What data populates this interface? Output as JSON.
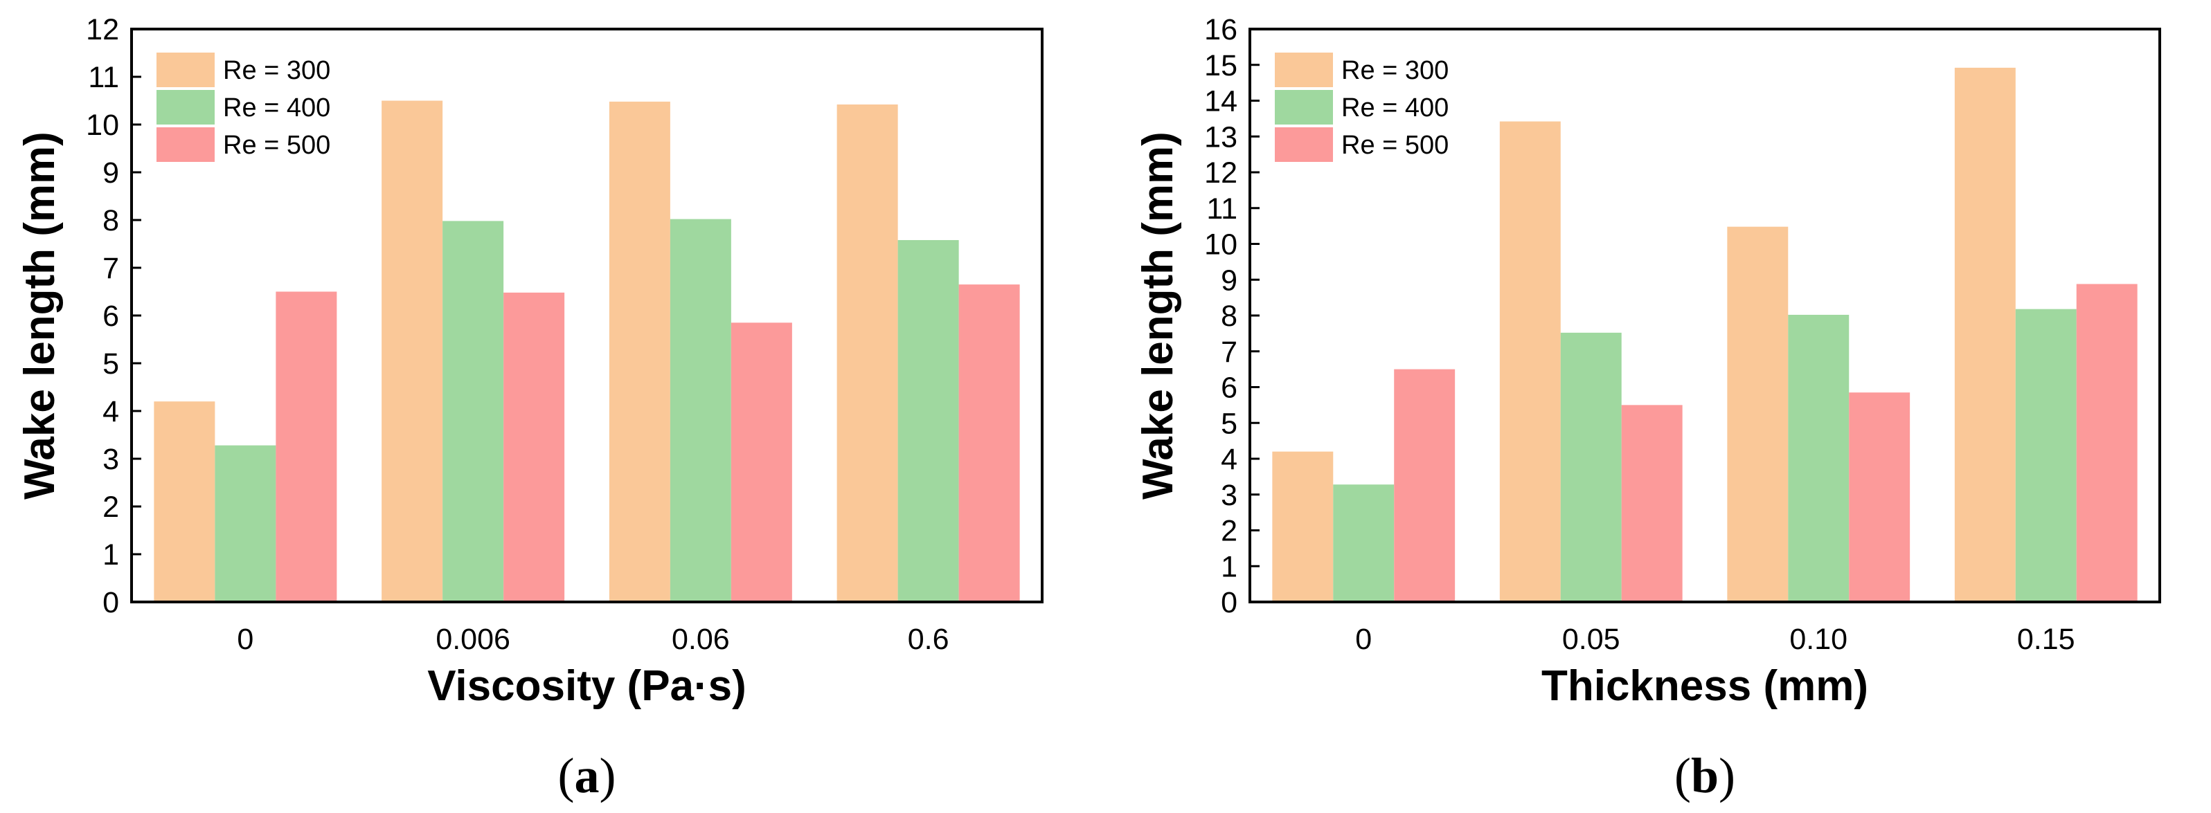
{
  "chart_data": [
    {
      "type": "bar",
      "panel_label": "a",
      "categories": [
        "0",
        "0.006",
        "0.06",
        "0.6"
      ],
      "series": [
        {
          "name": "Re = 300",
          "color": "#FAC898",
          "values": [
            4.2,
            10.5,
            10.48,
            10.42
          ]
        },
        {
          "name": "Re = 400",
          "color": "#9FD89F",
          "values": [
            3.28,
            7.98,
            8.02,
            7.58
          ]
        },
        {
          "name": "Re = 500",
          "color": "#FC9A9A",
          "values": [
            6.5,
            6.48,
            5.85,
            6.65
          ]
        }
      ],
      "title": "",
      "xlabel": "Viscosity (Pa·s)",
      "ylabel": "Wake length (mm)",
      "ylim": [
        0,
        12
      ],
      "yticks": [
        "0",
        "1",
        "2",
        "3",
        "4",
        "5",
        "6",
        "7",
        "8",
        "9",
        "10",
        "11",
        "12"
      ],
      "legend_position": "top-left"
    },
    {
      "type": "bar",
      "panel_label": "b",
      "categories": [
        "0",
        "0.05",
        "0.10",
        "0.15"
      ],
      "series": [
        {
          "name": "Re = 300",
          "color": "#FAC898",
          "values": [
            4.2,
            13.42,
            10.48,
            14.92
          ]
        },
        {
          "name": "Re = 400",
          "color": "#9FD89F",
          "values": [
            3.28,
            7.52,
            8.02,
            8.18
          ]
        },
        {
          "name": "Re = 500",
          "color": "#FC9A9A",
          "values": [
            6.5,
            5.5,
            5.85,
            8.88
          ]
        }
      ],
      "title": "",
      "xlabel": "Thickness (mm)",
      "ylabel": "Wake length (mm)",
      "ylim": [
        0,
        16
      ],
      "yticks": [
        "0",
        "1",
        "2",
        "3",
        "4",
        "5",
        "6",
        "7",
        "8",
        "9",
        "10",
        "11",
        "12",
        "13",
        "14",
        "15",
        "16"
      ],
      "legend_position": "top-left"
    }
  ]
}
